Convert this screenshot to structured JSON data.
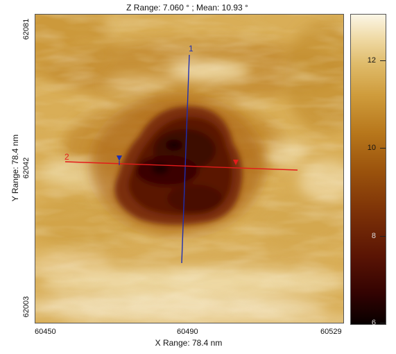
{
  "header": {
    "z_range_text": "Z Range:  7.060 ° ; Mean:  10.93 °"
  },
  "axes": {
    "y_label": "Y Range:  78.4 nm",
    "x_label": "X Range:  78.4 nm",
    "y_ticks": [
      "62081",
      "62042",
      "62003"
    ],
    "x_ticks": [
      "60450",
      "60490",
      "60529"
    ]
  },
  "colorbar": {
    "ticks": [
      "12",
      "10",
      "8",
      "6"
    ],
    "colors": [
      "#fbf6e6",
      "#dfbb6a",
      "#b8781c",
      "#7c3107",
      "#330302",
      "#080000"
    ]
  },
  "profiles": {
    "line1": {
      "label": "1",
      "color": "#1f2fb0"
    },
    "line2": {
      "label": "2",
      "color": "#e41b1b"
    }
  }
}
